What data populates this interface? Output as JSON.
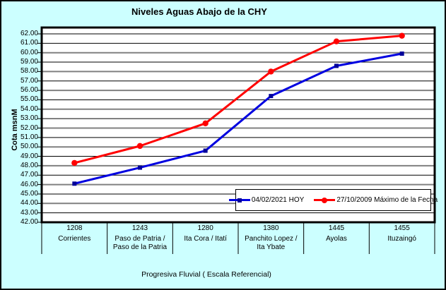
{
  "chart_data": {
    "type": "line",
    "title": "Niveles Aguas Abajo de la CHY",
    "xlabel": "Progresiva Fluvial ( Escala Referencial)",
    "ylabel": "Cota msnM",
    "ylim": [
      42,
      62
    ],
    "y_tick_step": 1,
    "grid": true,
    "legend_position": "inside-bottom-right",
    "y_tick_labels": [
      "62.00",
      "61.00",
      "60.00",
      "59.00",
      "58.00",
      "57.00",
      "56.00",
      "55.00",
      "54.00",
      "53.00",
      "52.00",
      "51.00",
      "50.00",
      "49.00",
      "48.00",
      "47.00",
      "46.00",
      "45.00",
      "44.00",
      "43.00",
      "42.00"
    ],
    "categories": [
      {
        "km": "1208",
        "name_lines": [
          "Corrientes"
        ]
      },
      {
        "km": "1243",
        "name_lines": [
          "Paso de Patria /",
          "Paso de la Patria"
        ]
      },
      {
        "km": "1280",
        "name_lines": [
          "Ita Cora / Itatí"
        ]
      },
      {
        "km": "1380",
        "name_lines": [
          "Panchito Lopez /",
          "Ita Ybate"
        ]
      },
      {
        "km": "1445",
        "name_lines": [
          "Ayolas"
        ]
      },
      {
        "km": "1455",
        "name_lines": [
          "Ituzaingó"
        ]
      }
    ],
    "series": [
      {
        "name": "04/02/2021 HOY",
        "color": "#0000E0",
        "marker": "square",
        "marker_color": "#000099",
        "values": [
          46.1,
          47.8,
          49.6,
          55.4,
          58.6,
          59.9
        ]
      },
      {
        "name": "27/10/2009 Máximo de la Fecha",
        "color": "#FF0000",
        "marker": "circle",
        "marker_color": "#FF0000",
        "values": [
          48.3,
          50.1,
          52.5,
          58.0,
          61.2,
          61.8
        ]
      }
    ]
  },
  "colors": {
    "background": "#CCFFFF",
    "plot_background": "#FFFFFF",
    "grid_even": "#808080",
    "grid_odd": "#000000",
    "border": "#000000"
  }
}
